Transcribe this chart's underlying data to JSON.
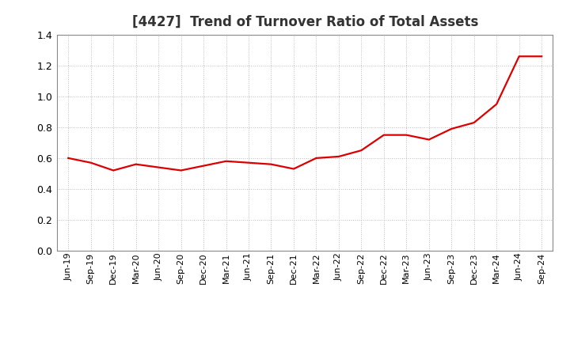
{
  "title": "[4427]  Trend of Turnover Ratio of Total Assets",
  "title_fontsize": 12,
  "title_color": "#333333",
  "line_color": "#DD0000",
  "background_color": "#FFFFFF",
  "plot_bg_color": "#FFFFFF",
  "grid_color": "#BBBBBB",
  "ylim": [
    0.0,
    1.4
  ],
  "yticks": [
    0.0,
    0.2,
    0.4,
    0.6,
    0.8,
    1.0,
    1.2,
    1.4
  ],
  "x_labels": [
    "Jun-19",
    "Sep-19",
    "Dec-19",
    "Mar-20",
    "Jun-20",
    "Sep-20",
    "Dec-20",
    "Mar-21",
    "Jun-21",
    "Sep-21",
    "Dec-21",
    "Mar-22",
    "Jun-22",
    "Sep-22",
    "Dec-22",
    "Mar-23",
    "Jun-23",
    "Sep-23",
    "Dec-23",
    "Mar-24",
    "Jun-24",
    "Sep-24"
  ],
  "values": [
    0.6,
    0.57,
    0.52,
    0.56,
    0.54,
    0.52,
    0.55,
    0.58,
    0.57,
    0.56,
    0.53,
    0.6,
    0.61,
    0.65,
    0.75,
    0.75,
    0.72,
    0.79,
    0.83,
    0.95,
    1.26,
    1.26
  ],
  "line_width": 1.6,
  "tick_fontsize": 9,
  "x_tick_fontsize": 8
}
